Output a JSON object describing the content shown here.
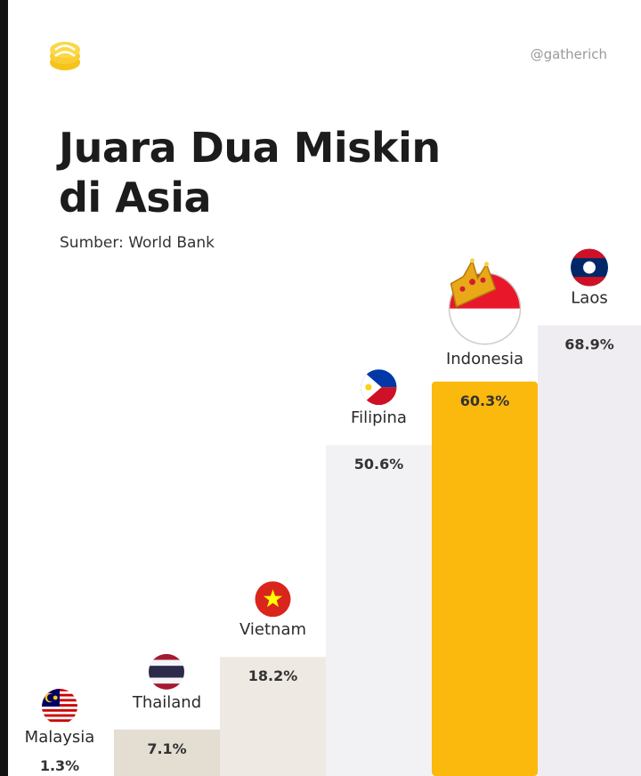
{
  "header": {
    "handle": "@gatherich",
    "title_line1": "Juara Dua Miskin",
    "title_line2": "di Asia",
    "source": "Sumber: World Bank"
  },
  "chart_data": {
    "type": "bar",
    "title": "Juara Dua Miskin di Asia",
    "source": "Sumber: World Bank",
    "categories": [
      "Malaysia",
      "Thailand",
      "Vietnam",
      "Filipina",
      "Indonesia",
      "Laos"
    ],
    "values": [
      1.3,
      7.1,
      18.2,
      50.6,
      60.3,
      68.9
    ],
    "value_labels": [
      "1.3%",
      "7.1%",
      "18.2%",
      "50.6%",
      "60.3%",
      "68.9%"
    ],
    "highlight": "Indonesia",
    "colors": {
      "highlight": "#fbb90e",
      "bar_light": "#f2f1f3",
      "bar_lavender": "#efedf1",
      "bar_beige": "#eeeae3",
      "bar_tan": "#e3ddd2",
      "crown": "#e8a818",
      "logo": "#f6c31b"
    },
    "flags": [
      "malaysia-flag",
      "thailand-flag",
      "vietnam-flag",
      "philippines-flag",
      "indonesia-flag",
      "laos-flag"
    ]
  }
}
